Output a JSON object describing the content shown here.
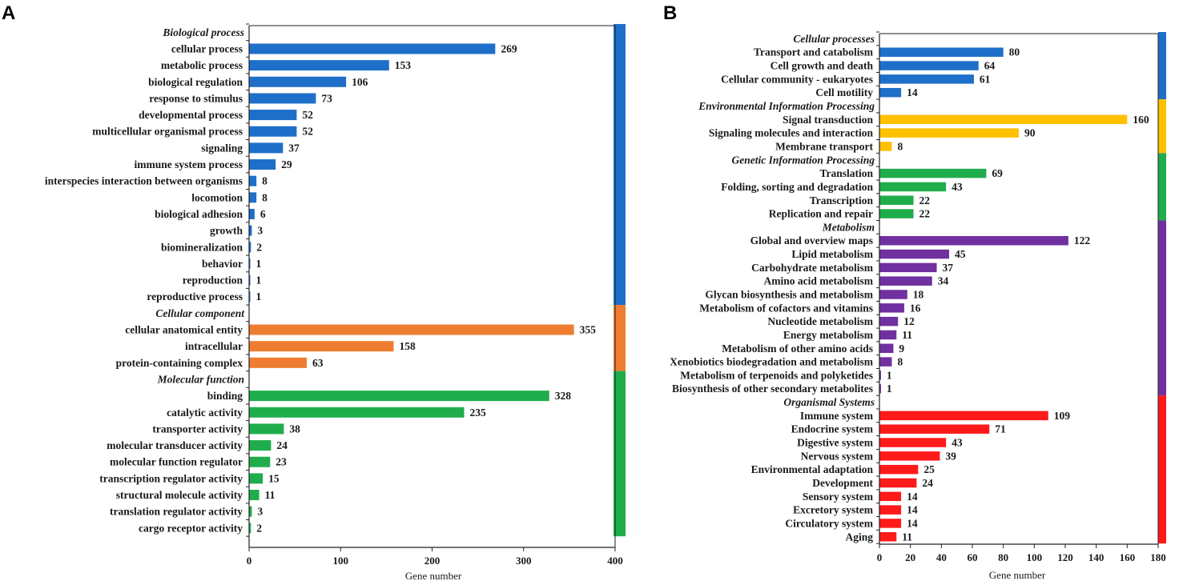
{
  "chart_data": [
    {
      "panel": "A",
      "type": "bar",
      "orientation": "horizontal",
      "xlabel": "Gene number",
      "xlim": [
        0,
        400
      ],
      "xticks": [
        0,
        100,
        200,
        300,
        400
      ],
      "colors": {
        "Biological process": "#1e6fc9",
        "Cellular component": "#ee7d31",
        "Molecular function": "#1fad4c"
      },
      "groups": [
        {
          "name": "Biological process",
          "items": [
            {
              "label": "cellular process",
              "value": 269
            },
            {
              "label": "metabolic process",
              "value": 153
            },
            {
              "label": "biological regulation",
              "value": 106
            },
            {
              "label": "response to stimulus",
              "value": 73
            },
            {
              "label": "developmental process",
              "value": 52
            },
            {
              "label": "multicellular organismal process",
              "value": 52
            },
            {
              "label": "signaling",
              "value": 37
            },
            {
              "label": "immune system process",
              "value": 29
            },
            {
              "label": "interspecies interaction between organisms",
              "value": 8
            },
            {
              "label": "locomotion",
              "value": 8
            },
            {
              "label": "biological adhesion",
              "value": 6
            },
            {
              "label": "growth",
              "value": 3
            },
            {
              "label": "biomineralization",
              "value": 2
            },
            {
              "label": "behavior",
              "value": 1
            },
            {
              "label": "reproduction",
              "value": 1
            },
            {
              "label": "reproductive process",
              "value": 1
            }
          ]
        },
        {
          "name": "Cellular component",
          "items": [
            {
              "label": "cellular anatomical entity",
              "value": 355
            },
            {
              "label": "intracellular",
              "value": 158
            },
            {
              "label": "protein-containing complex",
              "value": 63
            }
          ]
        },
        {
          "name": "Molecular function",
          "items": [
            {
              "label": "binding",
              "value": 328
            },
            {
              "label": "catalytic activity",
              "value": 235
            },
            {
              "label": "transporter activity",
              "value": 38
            },
            {
              "label": "molecular transducer activity",
              "value": 24
            },
            {
              "label": "molecular function regulator",
              "value": 23
            },
            {
              "label": "transcription regulator activity",
              "value": 15
            },
            {
              "label": "structural molecule activity",
              "value": 11
            },
            {
              "label": "translation regulator activity",
              "value": 3
            },
            {
              "label": "cargo receptor activity",
              "value": 2
            }
          ]
        }
      ]
    },
    {
      "panel": "B",
      "type": "bar",
      "orientation": "horizontal",
      "xlabel": "Gene number",
      "xlim": [
        0,
        180
      ],
      "xticks": [
        0,
        20,
        40,
        60,
        80,
        100,
        120,
        140,
        160,
        180
      ],
      "colors": {
        "Cellular processes": "#1e6fc9",
        "Environmental Information Processing": "#ffc000",
        "Genetic Information Processing": "#1fad4c",
        "Metabolism": "#7030a0",
        "Organismal Systems": "#ff1a1a"
      },
      "groups": [
        {
          "name": "Cellular processes",
          "items": [
            {
              "label": "Transport and catabolism",
              "value": 80
            },
            {
              "label": "Cell growth and death",
              "value": 64
            },
            {
              "label": "Cellular community - eukaryotes",
              "value": 61
            },
            {
              "label": "Cell motility",
              "value": 14
            }
          ]
        },
        {
          "name": "Environmental Information Processing",
          "items": [
            {
              "label": "Signal transduction",
              "value": 160
            },
            {
              "label": "Signaling molecules and interaction",
              "value": 90
            },
            {
              "label": "Membrane transport",
              "value": 8
            }
          ]
        },
        {
          "name": "Genetic Information Processing",
          "items": [
            {
              "label": "Translation",
              "value": 69
            },
            {
              "label": "Folding, sorting and degradation",
              "value": 43
            },
            {
              "label": "Transcription",
              "value": 22
            },
            {
              "label": "Replication and repair",
              "value": 22
            }
          ]
        },
        {
          "name": "Metabolism",
          "items": [
            {
              "label": "Global and overview maps",
              "value": 122
            },
            {
              "label": "Lipid metabolism",
              "value": 45
            },
            {
              "label": "Carbohydrate metabolism",
              "value": 37
            },
            {
              "label": "Amino acid metabolism",
              "value": 34
            },
            {
              "label": "Glycan biosynthesis and metabolism",
              "value": 18
            },
            {
              "label": "Metabolism of cofactors and vitamins",
              "value": 16
            },
            {
              "label": "Nucleotide metabolism",
              "value": 12
            },
            {
              "label": "Energy metabolism",
              "value": 11
            },
            {
              "label": "Metabolism of other amino acids",
              "value": 9
            },
            {
              "label": "Xenobiotics biodegradation and metabolism",
              "value": 8
            },
            {
              "label": "Metabolism of terpenoids and polyketides",
              "value": 1
            },
            {
              "label": "Biosynthesis of other secondary metabolites",
              "value": 1
            }
          ]
        },
        {
          "name": "Organismal Systems",
          "items": [
            {
              "label": "Immune system",
              "value": 109
            },
            {
              "label": "Endocrine system",
              "value": 71
            },
            {
              "label": "Digestive system",
              "value": 43
            },
            {
              "label": "Nervous system",
              "value": 39
            },
            {
              "label": "Environmental adaptation",
              "value": 25
            },
            {
              "label": "Development",
              "value": 24
            },
            {
              "label": "Sensory system",
              "value": 14
            },
            {
              "label": "Excretory system",
              "value": 14
            },
            {
              "label": "Circulatory system",
              "value": 14
            },
            {
              "label": "Aging",
              "value": 11
            }
          ]
        }
      ]
    }
  ]
}
